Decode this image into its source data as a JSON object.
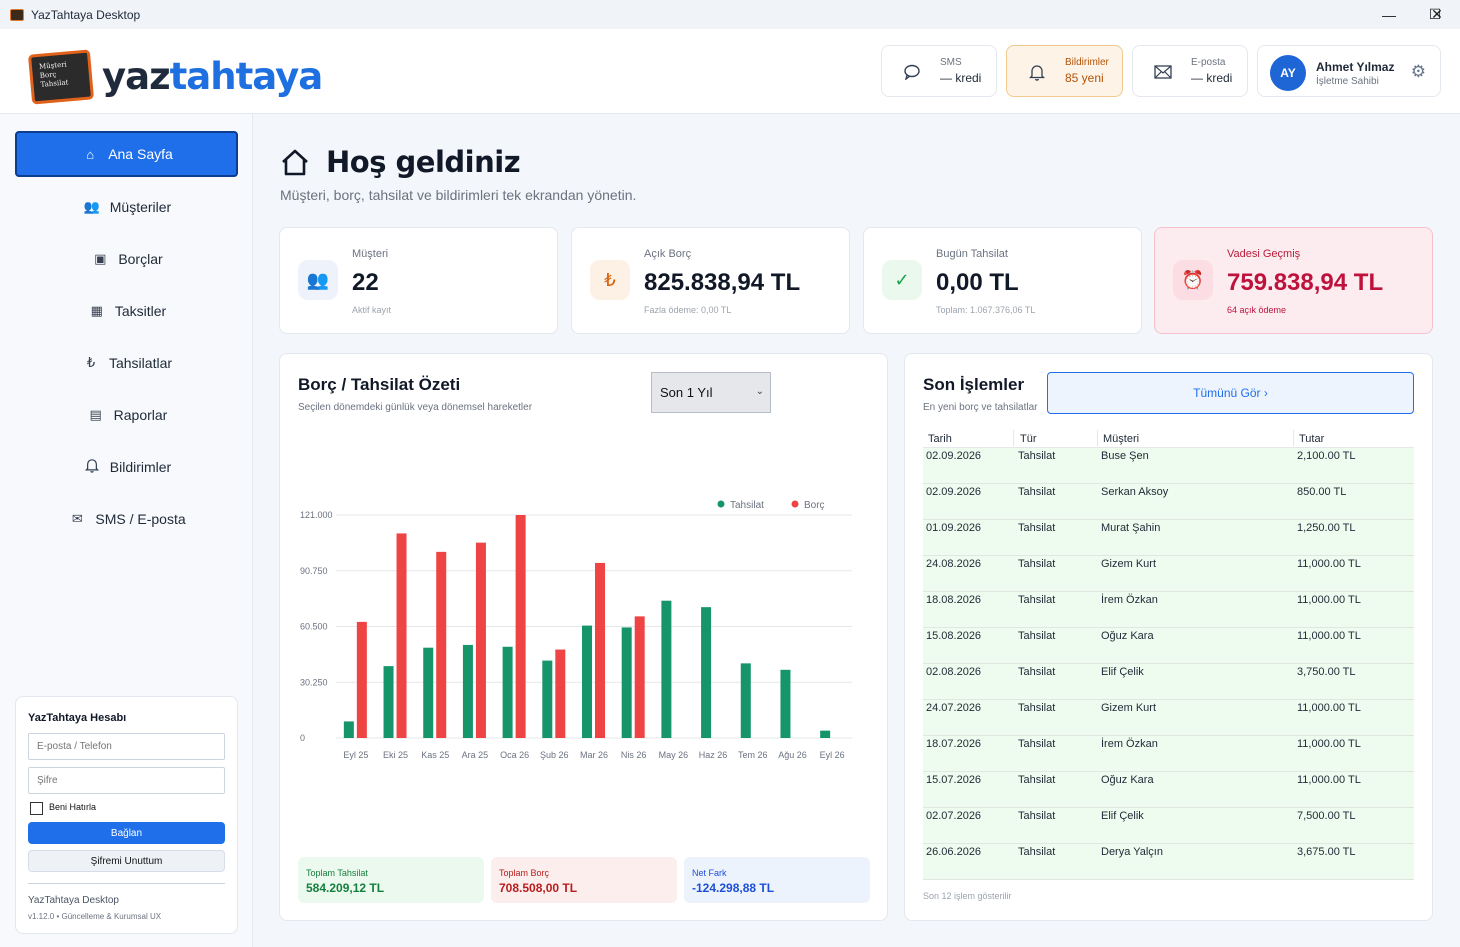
{
  "window": {
    "title": "YazTahtaya Desktop",
    "minimize": "—",
    "maximize": "☐",
    "close": "✕"
  },
  "logo": {
    "board_lines": [
      "Müşteri",
      "Borç",
      "Tahsilat"
    ],
    "word_a": "yaz",
    "word_b": "tahtaya"
  },
  "header": {
    "sms": {
      "label": "SMS",
      "value": "— kredi"
    },
    "notifications": {
      "label": "Bildirimler",
      "value": "85 yeni"
    },
    "email": {
      "label": "E-posta",
      "value": "— kredi"
    },
    "user": {
      "initials": "AY",
      "name": "Ahmet Yılmaz",
      "role": "İşletme Sahibi"
    }
  },
  "sidebar": {
    "items": [
      {
        "label": "Ana Sayfa",
        "icon": "home-icon",
        "glyph": "⌂"
      },
      {
        "label": "Müşteriler",
        "icon": "users-icon",
        "glyph": "👥"
      },
      {
        "label": "Borçlar",
        "icon": "debt-icon",
        "glyph": "▣"
      },
      {
        "label": "Taksitler",
        "icon": "calendar-icon",
        "glyph": "▦"
      },
      {
        "label": "Tahsilatlar",
        "icon": "lira-icon",
        "glyph": "₺"
      },
      {
        "label": "Raporlar",
        "icon": "report-icon",
        "glyph": "▤"
      },
      {
        "label": "Bildirimler",
        "icon": "bell-icon",
        "glyph": "🔔"
      },
      {
        "label": "SMS / E-posta",
        "icon": "mail-icon",
        "glyph": "✉"
      }
    ],
    "account": {
      "title": "YazTahtaya Hesabı",
      "email_placeholder": "E-posta / Telefon",
      "password_placeholder": "Şifre",
      "remember": "Beni Hatırla",
      "connect": "Bağlan",
      "forgot": "Şifremi Unuttum",
      "app_name": "YazTahtaya Desktop",
      "version": "v1.12.0 • Güncelleme & Kurumsal UX"
    }
  },
  "page": {
    "title": "Hoş geldiniz",
    "subtitle": "Müşteri, borç, tahsilat ve bildirimleri tek ekrandan yönetin."
  },
  "stats": [
    {
      "label": "Müşteri",
      "value": "22",
      "detail": "Aktif kayıt",
      "icon": "users-icon",
      "glyph": "👥",
      "color": "#1f2937",
      "bg": "#eef2fb"
    },
    {
      "label": "Açık Borç",
      "value": "825.838,94 TL",
      "detail": "Fazla ödeme: 0,00 TL",
      "icon": "lira-icon",
      "glyph": "₺",
      "color": "#d9620b",
      "bg": "#fdf0e4"
    },
    {
      "label": "Bugün Tahsilat",
      "value": "0,00 TL",
      "detail": "Toplam: 1.067.376,06 TL",
      "icon": "check-icon",
      "glyph": "✓",
      "color": "#16a34a",
      "bg": "#eaf8ee"
    },
    {
      "label": "Vadesi Geçmiş",
      "value": "759.838,94 TL",
      "detail": "64 açık ödeme",
      "icon": "alarm-icon",
      "glyph": "⏰",
      "color": "#b91c1c",
      "bg": "#fbdde3"
    }
  ],
  "chart_panel": {
    "title": "Borç / Tahsilat Özeti",
    "subtitle": "Seçilen dönemdeki günlük veya dönemsel hareketler",
    "period": "Son 1 Yıl",
    "summary": [
      {
        "label": "Toplam Tahsilat",
        "value": "584.209,12 TL",
        "bg": "#ecf9ef",
        "color": "#15803d"
      },
      {
        "label": "Toplam Borç",
        "value": "708.508,00 TL",
        "bg": "#fdeeee",
        "color": "#b91c1c"
      },
      {
        "label": "Net Fark",
        "value": "-124.298,88 TL",
        "bg": "#edf3fc",
        "color": "#1d4ed8"
      }
    ]
  },
  "chart_data": {
    "type": "bar",
    "categories": [
      "Eyl 25",
      "Eki 25",
      "Kas 25",
      "Ara 25",
      "Oca 26",
      "Şub 26",
      "Mar 26",
      "Nis 26",
      "May 26",
      "Haz 26",
      "Tem 26",
      "Ağu 26",
      "Eyl 26"
    ],
    "series": [
      {
        "name": "Tahsilat",
        "color": "#16956b",
        "values": [
          9000,
          39000,
          49000,
          50500,
          49500,
          42000,
          61000,
          60000,
          74500,
          71000,
          40500,
          37000,
          4000
        ]
      },
      {
        "name": "Borç",
        "color": "#ef4444",
        "values": [
          63000,
          111000,
          101000,
          106000,
          121000,
          48000,
          95000,
          66000,
          0,
          0,
          0,
          0,
          0
        ]
      }
    ],
    "yticks": [
      "0",
      "30.250",
      "60.500",
      "90.750",
      "121.000"
    ],
    "ylim": [
      0,
      121000
    ],
    "legend": "top-right",
    "grid": true
  },
  "transactions": {
    "title": "Son İşlemler",
    "subtitle": "En yeni borç ve tahsilatlar",
    "view_all": "Tümünü Gör ›",
    "columns": [
      "Tarih",
      "Tür",
      "Müşteri",
      "Tutar"
    ],
    "rows": [
      [
        "02.09.2026",
        "Tahsilat",
        "Buse Şen",
        "2,100.00 TL"
      ],
      [
        "02.09.2026",
        "Tahsilat",
        "Serkan Aksoy",
        "850.00 TL"
      ],
      [
        "01.09.2026",
        "Tahsilat",
        "Murat Şahin",
        "1,250.00 TL"
      ],
      [
        "24.08.2026",
        "Tahsilat",
        "Gizem Kurt",
        "11,000.00 TL"
      ],
      [
        "18.08.2026",
        "Tahsilat",
        "İrem Özkan",
        "11,000.00 TL"
      ],
      [
        "15.08.2026",
        "Tahsilat",
        "Oğuz Kara",
        "11,000.00 TL"
      ],
      [
        "02.08.2026",
        "Tahsilat",
        "Elif Çelik",
        "3,750.00 TL"
      ],
      [
        "24.07.2026",
        "Tahsilat",
        "Gizem Kurt",
        "11,000.00 TL"
      ],
      [
        "18.07.2026",
        "Tahsilat",
        "İrem Özkan",
        "11,000.00 TL"
      ],
      [
        "15.07.2026",
        "Tahsilat",
        "Oğuz Kara",
        "11,000.00 TL"
      ],
      [
        "02.07.2026",
        "Tahsilat",
        "Elif Çelik",
        "7,500.00 TL"
      ],
      [
        "26.06.2026",
        "Tahsilat",
        "Derya Yalçın",
        "3,675.00 TL"
      ]
    ],
    "footer": "Son 12 işlem gösterilir"
  }
}
